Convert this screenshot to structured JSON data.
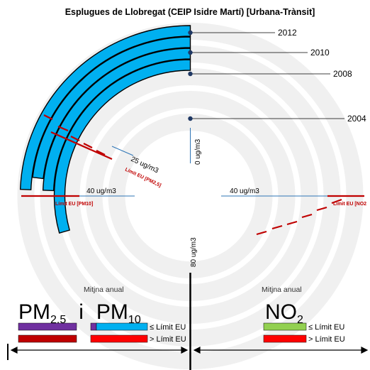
{
  "chart_data": {
    "type": "radial-bar",
    "title": "Esplugues de Llobregat (CEIP Isidre Martí)   [Urbana-Trànsit]",
    "years": [
      "2012",
      "2010",
      "2008",
      "2004"
    ],
    "series": [
      {
        "name": "PM10",
        "values": [
          {
            "year": "2012",
            "value": 39
          },
          {
            "year": "2010",
            "value": 37
          },
          {
            "year": "2008",
            "value": 39
          },
          {
            "year": "2004",
            "value": 47
          }
        ]
      }
    ],
    "scale_labels": {
      "zero": "0 ug/m3",
      "pm25_ref": "25 ug/m3",
      "pm10_ref": "40 ug/m3",
      "no2_ref": "40 ug/m3",
      "max": "80 ug/m3"
    },
    "limit_labels": {
      "pm25": "Límit EU [PM2,5]",
      "pm10": "Límit EU [PM10]",
      "no2": "Límit EU [NO2"
    },
    "legend": {
      "mitjana_left": "Mitjna anual",
      "mitjana_right": "Mitjna anual",
      "pm_title_pm": "PM",
      "pm_title_pm25_sub": "2,5",
      "pm_title_i": "i",
      "pm_title_pm10_main": "PM",
      "pm_title_pm10_sub": "10",
      "no2_title": "NO",
      "no2_sub": "2",
      "below_limit": "≤ Límit EU",
      "above_limit": "> Límit EU",
      "below_limit_no2": "≤ Límit EU",
      "above_limit_no2": "> Límit EU"
    },
    "colors": {
      "pm10_bar": "#00b0f0",
      "pm25_bar": "#7030a0",
      "above": "#ff0000",
      "above_pm25": "#c00000",
      "no2_below": "#92d050",
      "limit_line": "#c00000",
      "guide_line": "#2e75b6",
      "marker": "#1f3864"
    }
  }
}
